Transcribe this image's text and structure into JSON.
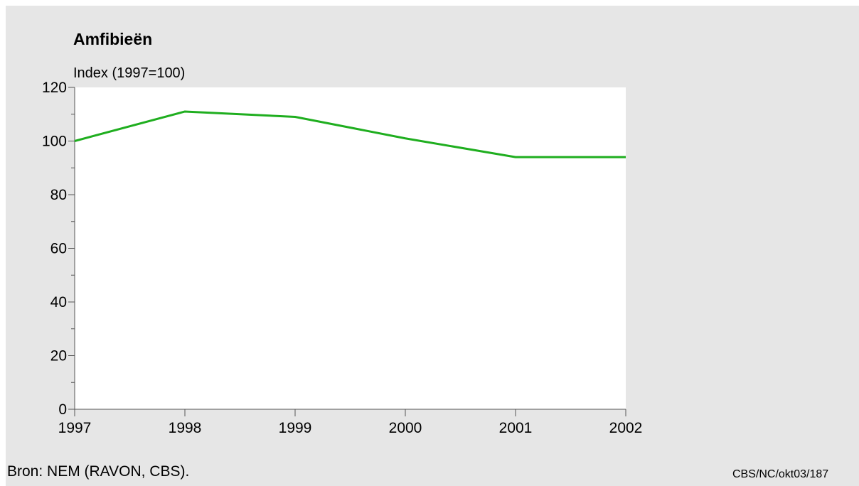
{
  "chart_data": {
    "type": "line",
    "title": "Amfibieën",
    "ylabel": "Index (1997=100)",
    "xlabel": "",
    "categories": [
      "1997",
      "1998",
      "1999",
      "2000",
      "2001",
      "2002"
    ],
    "series": [
      {
        "values": [
          100,
          111,
          109,
          101,
          94,
          94
        ],
        "color": "#1fae1f"
      }
    ],
    "ylim": [
      0,
      120
    ],
    "yticks": [
      0,
      20,
      40,
      60,
      80,
      100,
      120
    ],
    "grid": false,
    "plot_background": "#ffffff",
    "background": "#e6e6e6"
  },
  "footer": {
    "source": "Bron: NEM (RAVON, CBS).",
    "code": "CBS/NC/okt03/187"
  }
}
